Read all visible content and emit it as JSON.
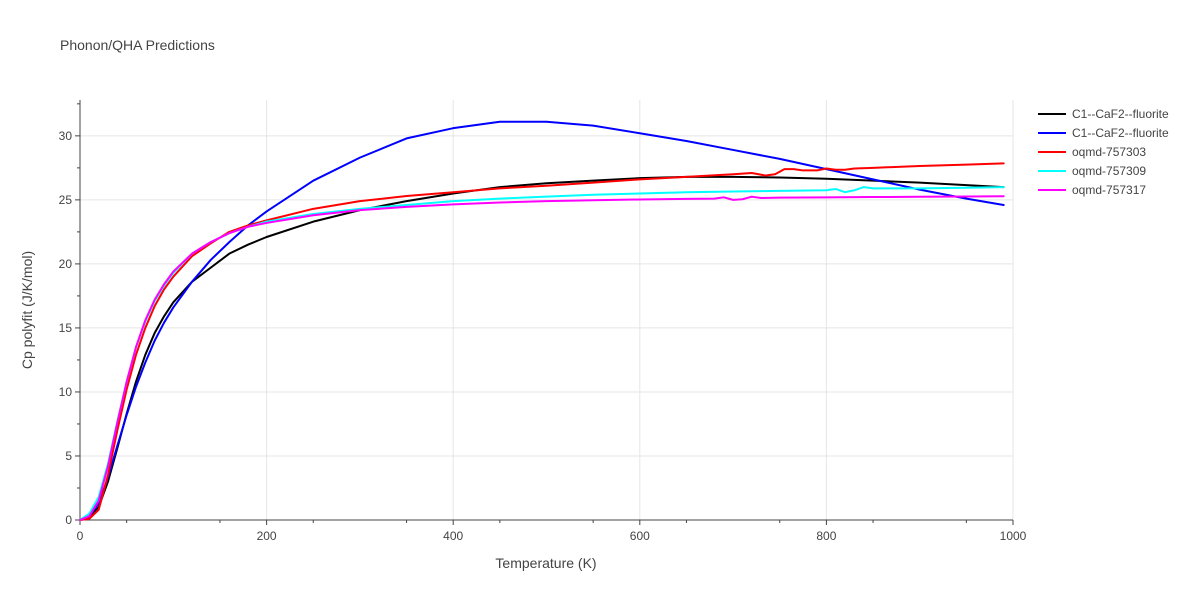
{
  "chart_data": {
    "type": "line",
    "title": "Phonon/QHA Predictions",
    "xlabel": "Temperature (K)",
    "ylabel": "Cp polyfit (J/K/mol)",
    "xlim": [
      0,
      1000
    ],
    "ylim": [
      0,
      32.8
    ],
    "xticks": [
      0,
      200,
      400,
      600,
      800,
      1000
    ],
    "xtick_labels": [
      "0",
      "200",
      "400",
      "600",
      "800",
      "1000"
    ],
    "yticks": [
      0,
      5,
      10,
      15,
      20,
      25,
      30
    ],
    "ytick_labels": [
      "0",
      "5",
      "10",
      "15",
      "20",
      "25",
      "30"
    ],
    "grid": true,
    "legend_position": "top-right",
    "series": [
      {
        "name": "C1--CaF2--fluorite",
        "color": "#000000",
        "x": [
          0,
          10,
          20,
          30,
          40,
          50,
          60,
          70,
          80,
          90,
          100,
          120,
          140,
          160,
          180,
          200,
          250,
          300,
          350,
          400,
          450,
          500,
          550,
          600,
          650,
          700,
          750,
          800,
          850,
          900,
          950,
          990
        ],
        "y": [
          0,
          0.2,
          1.0,
          3.0,
          5.6,
          8.3,
          10.8,
          12.9,
          14.6,
          15.9,
          17.0,
          18.6,
          19.7,
          20.8,
          21.5,
          22.1,
          23.3,
          24.2,
          24.9,
          25.5,
          26.0,
          26.3,
          26.5,
          26.7,
          26.8,
          26.8,
          26.75,
          26.65,
          26.5,
          26.35,
          26.15,
          26.0
        ]
      },
      {
        "name": "C1--CaF2--fluorite",
        "color": "#0000ff",
        "x": [
          0,
          10,
          20,
          30,
          40,
          50,
          60,
          70,
          80,
          90,
          100,
          120,
          140,
          160,
          180,
          200,
          250,
          300,
          350,
          400,
          450,
          500,
          550,
          600,
          650,
          700,
          750,
          800,
          850,
          900,
          950,
          990
        ],
        "y": [
          0,
          0.3,
          1.3,
          3.3,
          5.8,
          8.2,
          10.4,
          12.3,
          14.0,
          15.4,
          16.6,
          18.6,
          20.3,
          21.7,
          23.0,
          24.1,
          26.5,
          28.3,
          29.8,
          30.6,
          31.1,
          31.1,
          30.8,
          30.2,
          29.6,
          28.9,
          28.2,
          27.4,
          26.6,
          25.8,
          25.1,
          24.6
        ]
      },
      {
        "name": "oqmd-757303",
        "color": "#ff0000",
        "x": [
          0,
          10,
          20,
          30,
          40,
          50,
          60,
          70,
          80,
          90,
          100,
          120,
          140,
          160,
          180,
          200,
          250,
          300,
          350,
          400,
          450,
          500,
          550,
          600,
          650,
          700,
          720,
          735,
          745,
          755,
          765,
          775,
          790,
          800,
          810,
          820,
          830,
          850,
          900,
          950,
          990
        ],
        "y": [
          0,
          0.1,
          0.8,
          3.5,
          7.0,
          10.2,
          12.9,
          15.0,
          16.7,
          18.0,
          19.0,
          20.6,
          21.6,
          22.5,
          23.0,
          23.4,
          24.3,
          24.9,
          25.3,
          25.6,
          25.9,
          26.1,
          26.35,
          26.6,
          26.8,
          27.0,
          27.1,
          26.9,
          27.0,
          27.4,
          27.4,
          27.3,
          27.3,
          27.45,
          27.35,
          27.35,
          27.45,
          27.5,
          27.65,
          27.75,
          27.85
        ]
      },
      {
        "name": "oqmd-757309",
        "color": "#00ffff",
        "x": [
          0,
          10,
          20,
          30,
          40,
          50,
          60,
          70,
          80,
          90,
          100,
          120,
          140,
          160,
          180,
          200,
          250,
          300,
          350,
          400,
          450,
          500,
          550,
          600,
          650,
          700,
          750,
          800,
          810,
          820,
          830,
          840,
          850,
          900,
          950,
          990
        ],
        "y": [
          0,
          0.5,
          1.8,
          4.4,
          7.7,
          10.8,
          13.5,
          15.5,
          17.1,
          18.3,
          19.3,
          20.8,
          21.7,
          22.4,
          22.9,
          23.3,
          23.9,
          24.3,
          24.6,
          24.9,
          25.1,
          25.25,
          25.4,
          25.5,
          25.6,
          25.65,
          25.7,
          25.75,
          25.85,
          25.6,
          25.75,
          26.0,
          25.9,
          25.9,
          25.95,
          26.0
        ]
      },
      {
        "name": "oqmd-757317",
        "color": "#ff00ff",
        "x": [
          0,
          10,
          20,
          30,
          40,
          50,
          60,
          70,
          80,
          90,
          100,
          120,
          140,
          160,
          180,
          200,
          250,
          300,
          350,
          400,
          450,
          500,
          550,
          600,
          650,
          680,
          690,
          700,
          710,
          720,
          730,
          750,
          800,
          850,
          900,
          950,
          990
        ],
        "y": [
          0,
          0.3,
          1.5,
          4.2,
          7.6,
          10.8,
          13.5,
          15.6,
          17.2,
          18.4,
          19.4,
          20.8,
          21.7,
          22.4,
          22.9,
          23.2,
          23.8,
          24.2,
          24.45,
          24.65,
          24.8,
          24.9,
          24.97,
          25.03,
          25.08,
          25.1,
          25.2,
          25.0,
          25.05,
          25.25,
          25.15,
          25.18,
          25.2,
          25.22,
          25.24,
          25.26,
          25.28
        ]
      }
    ]
  }
}
